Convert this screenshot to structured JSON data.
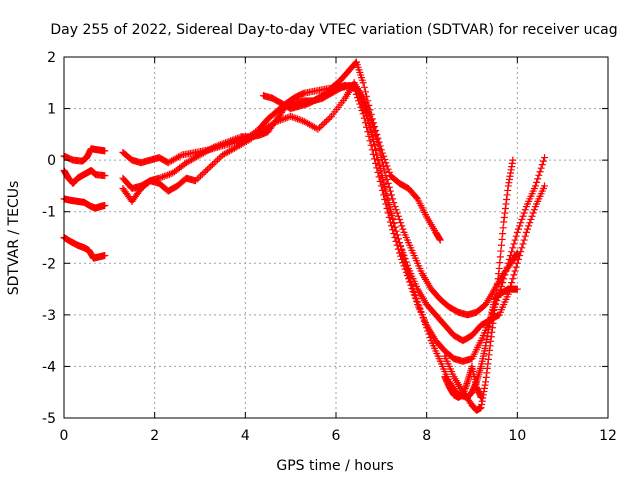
{
  "chart_data": {
    "type": "scatter",
    "title": "Day 255 of 2022, Sidereal Day-to-day VTEC variation (SDTVAR) for receiver ucag",
    "xlabel": "GPS time / hours",
    "ylabel": "SDTVAR / TECUs",
    "xlim": [
      0,
      12
    ],
    "ylim": [
      -5,
      2
    ],
    "xticks": [
      0,
      2,
      4,
      6,
      8,
      10,
      12
    ],
    "yticks": [
      -5,
      -4,
      -3,
      -2,
      -1,
      0,
      1,
      2
    ],
    "grid": true,
    "marker": "plus",
    "color": "#ff0000",
    "series": [
      {
        "x": [
          0.0,
          0.2,
          0.4,
          0.5,
          0.6,
          0.75,
          0.9
        ],
        "y": [
          0.08,
          0.0,
          -0.02,
          0.05,
          0.22,
          0.2,
          0.18
        ]
      },
      {
        "x": [
          0.0,
          0.1,
          0.2,
          0.3,
          0.4,
          0.5,
          0.6,
          0.7,
          0.9
        ],
        "y": [
          -0.2,
          -0.35,
          -0.45,
          -0.35,
          -0.3,
          -0.25,
          -0.2,
          -0.28,
          -0.3
        ]
      },
      {
        "x": [
          0.0,
          0.15,
          0.3,
          0.45,
          0.6,
          0.7,
          0.8,
          0.9
        ],
        "y": [
          -0.75,
          -0.78,
          -0.8,
          -0.82,
          -0.9,
          -0.93,
          -0.9,
          -0.88
        ]
      },
      {
        "x": [
          0.0,
          0.15,
          0.3,
          0.45,
          0.55,
          0.65,
          0.75,
          0.9
        ],
        "y": [
          -1.5,
          -1.58,
          -1.65,
          -1.7,
          -1.75,
          -1.9,
          -1.88,
          -1.85
        ]
      },
      {
        "x": [
          1.3,
          1.5,
          1.7,
          1.9,
          2.1,
          2.3,
          2.6,
          2.9,
          3.2,
          3.5,
          3.8,
          4.0,
          4.3,
          4.5,
          4.7,
          4.9,
          5.1,
          5.3,
          5.6,
          5.9,
          6.1,
          6.3,
          6.45
        ],
        "y": [
          0.15,
          0.0,
          -0.05,
          0.0,
          0.05,
          -0.05,
          0.1,
          0.15,
          0.2,
          0.28,
          0.35,
          0.4,
          0.6,
          0.8,
          0.95,
          1.1,
          1.22,
          1.3,
          1.35,
          1.4,
          1.55,
          1.75,
          1.9
        ]
      },
      {
        "x": [
          6.45,
          6.6,
          6.8,
          7.0,
          7.2,
          7.4,
          7.6,
          7.8,
          8.0,
          8.2,
          8.3
        ],
        "y": [
          1.9,
          1.5,
          0.8,
          0.2,
          -0.3,
          -0.45,
          -0.55,
          -0.75,
          -1.1,
          -1.4,
          -1.55
        ]
      },
      {
        "x": [
          1.3,
          1.5,
          1.7,
          1.9,
          2.1,
          2.4,
          2.7,
          3.0,
          3.3,
          3.6,
          3.9,
          4.1,
          4.3,
          4.5,
          4.7,
          4.9,
          5.1,
          5.3,
          5.5,
          5.7,
          5.9,
          6.1,
          6.3,
          6.5
        ],
        "y": [
          -0.35,
          -0.55,
          -0.5,
          -0.4,
          -0.35,
          -0.25,
          -0.05,
          0.1,
          0.25,
          0.35,
          0.45,
          0.45,
          0.48,
          0.55,
          0.8,
          1.05,
          1.1,
          1.15,
          1.15,
          1.2,
          1.3,
          1.4,
          1.45,
          1.35
        ]
      },
      {
        "x": [
          6.5,
          6.7,
          6.9,
          7.1,
          7.3,
          7.5,
          7.7,
          7.9,
          8.1,
          8.3,
          8.5,
          8.7,
          8.9,
          9.1,
          9.3,
          9.5,
          9.7,
          9.9,
          10.0
        ],
        "y": [
          1.35,
          1.0,
          0.4,
          -0.3,
          -0.9,
          -1.4,
          -1.8,
          -2.2,
          -2.5,
          -2.7,
          -2.85,
          -2.95,
          -3.0,
          -2.95,
          -2.8,
          -2.5,
          -2.2,
          -1.95,
          -1.8
        ]
      },
      {
        "x": [
          1.3,
          1.5,
          1.7,
          1.9,
          2.1,
          2.3,
          2.5,
          2.7,
          2.9,
          3.2,
          3.5,
          3.8,
          4.1,
          4.4,
          4.7,
          5.0,
          5.3,
          5.6,
          5.9,
          6.2,
          6.4
        ],
        "y": [
          -0.55,
          -0.8,
          -0.55,
          -0.4,
          -0.45,
          -0.6,
          -0.5,
          -0.35,
          -0.4,
          -0.15,
          0.1,
          0.25,
          0.4,
          0.6,
          0.75,
          0.85,
          0.75,
          0.6,
          0.85,
          1.2,
          1.5
        ]
      },
      {
        "x": [
          6.4,
          6.6,
          6.8,
          7.0,
          7.2,
          7.4,
          7.6,
          7.8,
          8.0,
          8.2,
          8.4,
          8.6,
          8.8,
          9.0,
          9.2,
          9.4,
          9.6,
          9.8,
          10.0,
          10.2,
          10.4,
          10.6
        ],
        "y": [
          1.5,
          1.2,
          0.5,
          -0.3,
          -1.0,
          -1.6,
          -2.1,
          -2.5,
          -2.8,
          -3.0,
          -3.2,
          -3.4,
          -3.5,
          -3.4,
          -3.2,
          -3.1,
          -3.0,
          -2.6,
          -2.0,
          -1.4,
          -0.9,
          -0.5
        ]
      },
      {
        "x": [
          4.4,
          4.6,
          4.8,
          5.0,
          5.2,
          5.4,
          5.6,
          5.8,
          6.0,
          6.2,
          6.4
        ],
        "y": [
          1.25,
          1.2,
          1.1,
          1.0,
          1.05,
          1.1,
          1.2,
          1.3,
          1.4,
          1.45,
          1.4
        ]
      },
      {
        "x": [
          6.4,
          6.6,
          6.8,
          7.0,
          7.2,
          7.4,
          7.6,
          7.8,
          8.0,
          8.2,
          8.4,
          8.6,
          8.8,
          9.0,
          9.2,
          9.4,
          9.6,
          9.8,
          10.0,
          10.2,
          10.4,
          10.6
        ],
        "y": [
          1.4,
          0.9,
          0.2,
          -0.5,
          -1.2,
          -1.8,
          -2.3,
          -2.8,
          -3.2,
          -3.5,
          -3.7,
          -3.85,
          -3.9,
          -3.85,
          -3.5,
          -3.1,
          -2.6,
          -2.0,
          -1.4,
          -0.9,
          -0.5,
          0.05
        ]
      },
      {
        "x": [
          6.5,
          6.7,
          6.9,
          7.1,
          7.3,
          7.5,
          7.7,
          7.9,
          8.1,
          8.3,
          8.5,
          8.7,
          8.9,
          9.0,
          9.1,
          9.2,
          9.3,
          9.4,
          9.5,
          9.6,
          9.7,
          9.8,
          9.9,
          10.0
        ],
        "y": [
          1.3,
          0.8,
          0.1,
          -0.6,
          -1.3,
          -1.9,
          -2.5,
          -3.0,
          -3.5,
          -3.9,
          -4.3,
          -4.55,
          -4.6,
          -4.5,
          -4.3,
          -4.0,
          -3.6,
          -3.1,
          -2.7,
          -2.6,
          -2.55,
          -2.5,
          -2.5,
          -2.5
        ]
      },
      {
        "x": [
          8.4,
          8.6,
          8.8,
          9.0,
          9.1,
          9.2,
          9.3,
          9.4,
          9.5,
          9.6,
          9.7,
          9.8,
          9.9
        ],
        "y": [
          -3.8,
          -4.2,
          -4.5,
          -4.75,
          -4.85,
          -4.8,
          -4.3,
          -3.6,
          -2.9,
          -2.1,
          -1.2,
          -0.5,
          0.0
        ]
      },
      {
        "x": [
          8.4,
          8.5,
          8.6,
          8.7,
          8.8,
          8.9,
          9.0,
          9.1,
          9.2
        ],
        "y": [
          -4.2,
          -4.4,
          -4.55,
          -4.6,
          -4.55,
          -4.3,
          -4.0,
          -4.4,
          -4.6
        ]
      }
    ]
  }
}
